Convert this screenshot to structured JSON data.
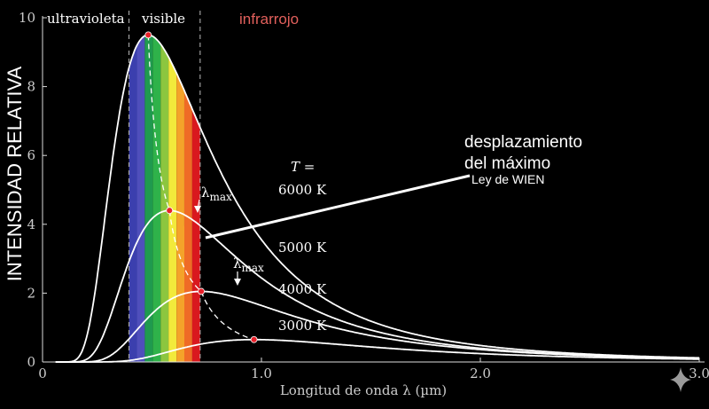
{
  "chart_data": {
    "type": "line",
    "title": "",
    "xlabel": "Longitud de onda λ (µm)",
    "ylabel": "INTENSIDAD RELATIVA",
    "xlim": [
      0,
      3.0
    ],
    "ylim": [
      0,
      10
    ],
    "x_ticks": [
      "0",
      "1.0",
      "2.0",
      "3.0"
    ],
    "y_ticks": [
      "0",
      "2",
      "4",
      "6",
      "8",
      "10"
    ],
    "grid": false,
    "legend": "none",
    "temperature_label": "T =",
    "regions": [
      {
        "name": "ultravioleta",
        "label": "ultravioleta",
        "x_from": 0,
        "x_to": 0.4
      },
      {
        "name": "visible",
        "label": "visible",
        "x_from": 0.4,
        "x_to": 0.7
      },
      {
        "name": "infrarrojo",
        "label": "infrarrojo",
        "x_from": 0.7,
        "x_to": 3.0
      }
    ],
    "series": [
      {
        "name": "6000 K",
        "label": "6000 K",
        "temperature": 6000,
        "peak_x": 0.483,
        "peak_y": 9.5
      },
      {
        "name": "5000 K",
        "label": "5000 K",
        "temperature": 5000,
        "peak_x": 0.58,
        "peak_y": 4.4
      },
      {
        "name": "4000 K",
        "label": "4000 K",
        "temperature": 4000,
        "peak_x": 0.725,
        "peak_y": 2.05
      },
      {
        "name": "3000 K",
        "label": "3000 K",
        "temperature": 3000,
        "peak_x": 0.966,
        "peak_y": 0.65
      }
    ],
    "annotations": {
      "lambda_max": "λ",
      "lambda_max_sub": "max",
      "wien_line1": "desplazamiento",
      "wien_line2": "del máximo",
      "wien_law": "Ley de WIEN"
    },
    "colors": {
      "background": "#000000",
      "curve": "#ffffff",
      "peak_marker": "#e8202a",
      "infrarrojo_label": "#e2605c",
      "spectrum": [
        "#3b3fae",
        "#4f4fbb",
        "#1f9a4e",
        "#2fb24a",
        "#8cc63f",
        "#f2ea3b",
        "#f4a32a",
        "#ef6b26",
        "#d9181e"
      ]
    }
  }
}
